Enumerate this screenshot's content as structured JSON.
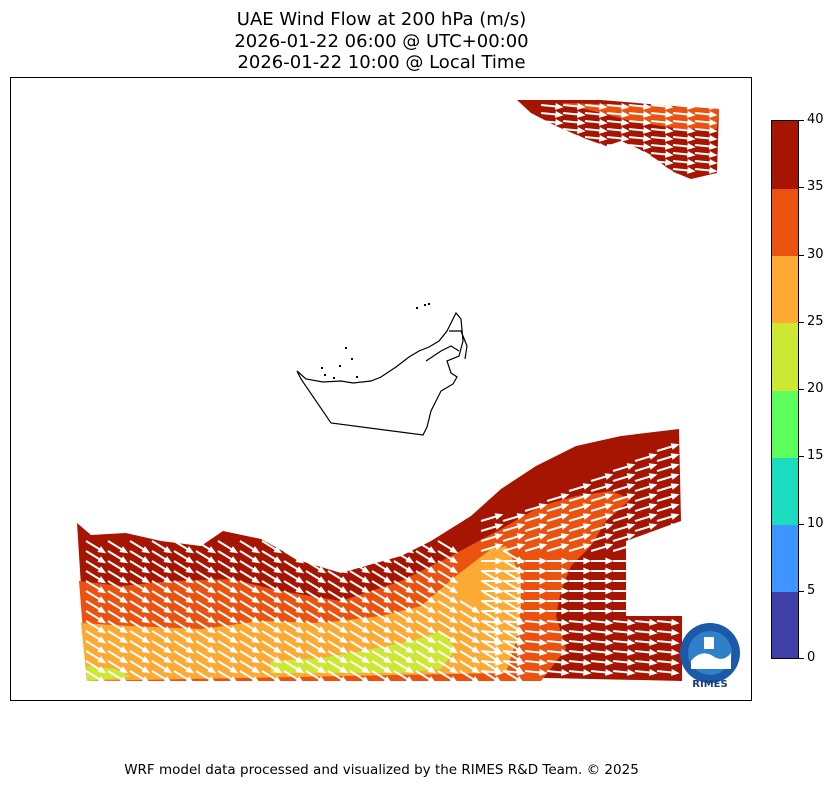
{
  "title_lines": [
    "UAE Wind Flow at 200 hPa (m/s)",
    "2026-01-22 06:00 @ UTC+00:00",
    "2026-01-22 10:00 @ Local Time"
  ],
  "colorbar": {
    "ticks": [
      "0",
      "5",
      "10",
      "15",
      "20",
      "25",
      "30",
      "35",
      "40"
    ],
    "colors": [
      "#3f3fa8",
      "#3f95ff",
      "#1cdcbf",
      "#5cff5c",
      "#cce832",
      "#fcaa34",
      "#eb5210",
      "#a61502"
    ]
  },
  "logo_text": "RIMES",
  "footer": "WRF model data processed and visualized by the RIMES R&D Team. © 2025"
}
